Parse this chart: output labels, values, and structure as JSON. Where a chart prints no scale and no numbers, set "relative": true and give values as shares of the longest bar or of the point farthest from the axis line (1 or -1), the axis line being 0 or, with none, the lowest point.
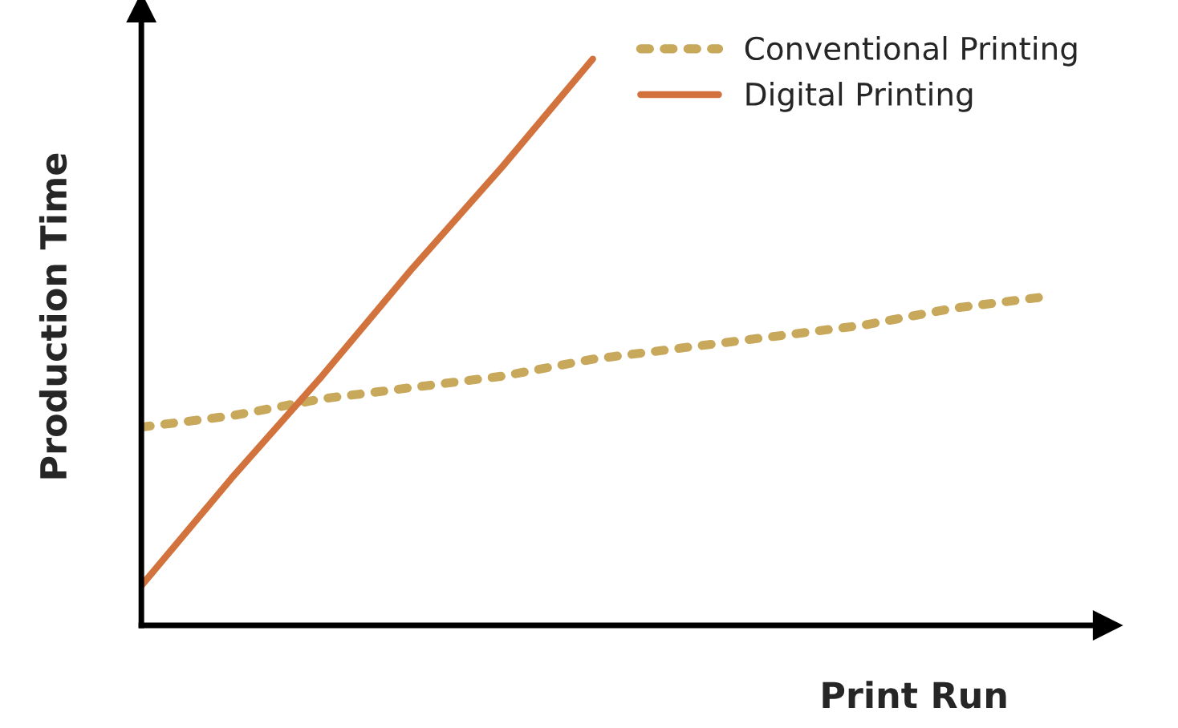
{
  "chart_data": {
    "type": "line",
    "relative": true,
    "xlabel": "Print Run",
    "ylabel": "Production Time",
    "categories": [
      null,
      null,
      null,
      null,
      null,
      null,
      null,
      null,
      null,
      null,
      null
    ],
    "series": [
      {
        "name": "Conventional Printing",
        "color": "#c8a85a",
        "line_style": "dotted",
        "values": [
          0.35,
          0.37,
          0.4,
          0.42,
          0.44,
          0.47,
          0.49,
          0.51,
          0.53,
          0.56,
          0.58
        ]
      },
      {
        "name": "Digital Printing",
        "color": "#d2723c",
        "line_style": "solid",
        "values": [
          0.07,
          0.26,
          0.44,
          0.63,
          0.81,
          1.0,
          null,
          null,
          null,
          null,
          null
        ]
      }
    ],
    "legend": "top right",
    "grid": false
  }
}
